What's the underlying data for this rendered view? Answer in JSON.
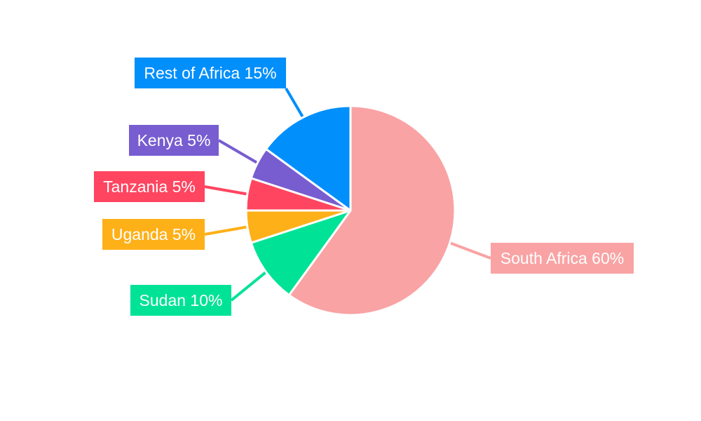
{
  "chart_data": {
    "type": "pie",
    "title": "",
    "start_angle": "12 o'clock, clockwise",
    "slices": [
      {
        "label": "South Africa",
        "value": 60,
        "text": "South Africa 60%",
        "color": "#F9A3A4"
      },
      {
        "label": "Sudan",
        "value": 10,
        "text": "Sudan 10%",
        "color": "#00E396"
      },
      {
        "label": "Uganda",
        "value": 5,
        "text": "Uganda 5%",
        "color": "#FEB019"
      },
      {
        "label": "Tanzania",
        "value": 5,
        "text": "Tanzania 5%",
        "color": "#FF4560"
      },
      {
        "label": "Kenya",
        "value": 5,
        "text": "Kenya 5%",
        "color": "#775DD0"
      },
      {
        "label": "Rest of Africa",
        "value": 15,
        "text": "Rest of Africa 15%",
        "color": "#008FFB"
      }
    ],
    "legend": "none"
  }
}
